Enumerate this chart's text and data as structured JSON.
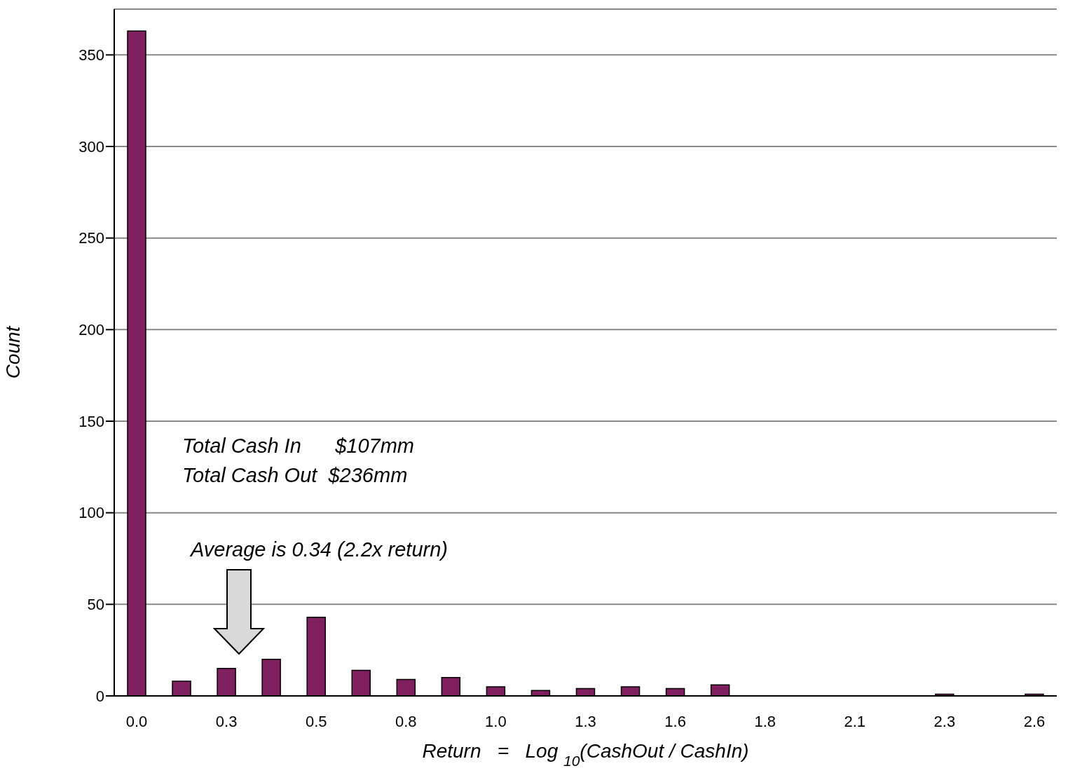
{
  "chart_data": {
    "type": "bar",
    "xlabel": "Return   =   Log $_{10}$(CashOut / CashIn)",
    "ylabel": "Count",
    "categories": [
      "0.0",
      null,
      "0.3",
      null,
      "0.5",
      null,
      "0.8",
      null,
      "1.0",
      null,
      "1.3",
      null,
      "1.6",
      null,
      "1.8",
      null,
      "2.1",
      null,
      "2.3",
      null,
      "2.6"
    ],
    "values": [
      363,
      8,
      15,
      20,
      43,
      14,
      9,
      10,
      5,
      3,
      4,
      5,
      4,
      6,
      0,
      0,
      0,
      0,
      1,
      0,
      1
    ],
    "color": "#7f1f5f",
    "ylim": [
      0,
      375
    ],
    "yticks": [
      0,
      50,
      100,
      150,
      200,
      250,
      300,
      350
    ],
    "grid": "y",
    "annotations": [
      "Total Cash In      $107mm",
      "Total Cash Out  $236mm",
      "Average is 0.34 (2.2x return)"
    ]
  }
}
